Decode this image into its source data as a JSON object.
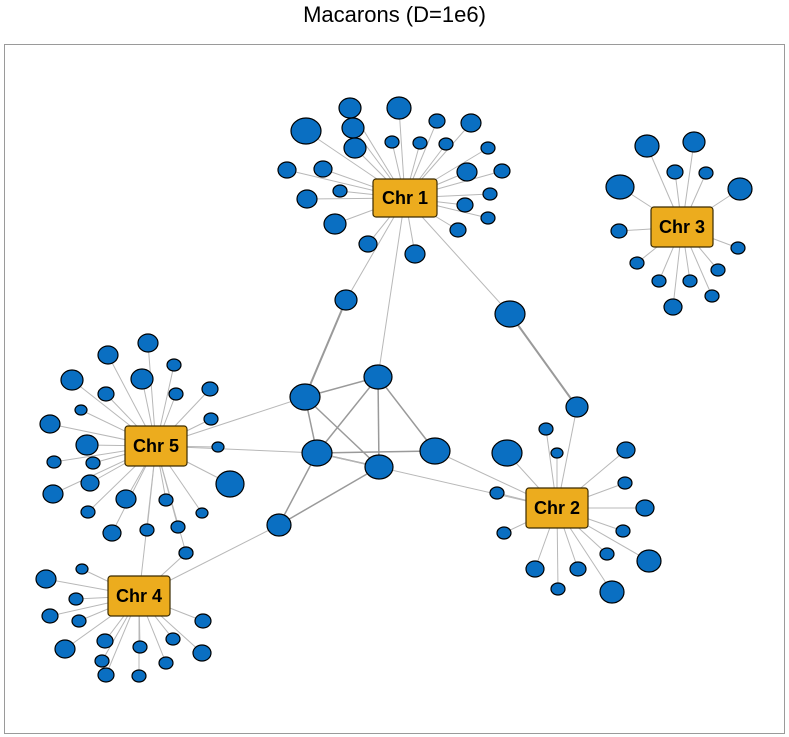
{
  "title": "Macarons (D=1e6)",
  "colors": {
    "node_fill": "#0a6fc2",
    "node_stroke": "#000000",
    "hub_fill": "#ecac1e",
    "hub_stroke": "#3a2a00",
    "edge": "#b8b8b8",
    "edge_strong": "#9a9a9a"
  },
  "hubs": [
    {
      "id": "chr1",
      "label": "Chr 1"
    },
    {
      "id": "chr2",
      "label": "Chr 2"
    },
    {
      "id": "chr3",
      "label": "Chr 3"
    },
    {
      "id": "chr4",
      "label": "Chr 4"
    },
    {
      "id": "chr5",
      "label": "Chr 5"
    }
  ]
}
